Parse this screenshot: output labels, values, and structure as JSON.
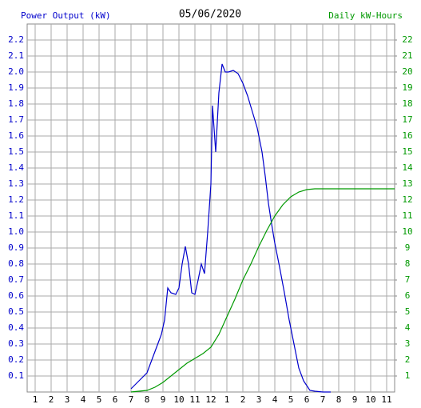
{
  "chart_data": {
    "type": "line",
    "title": "05/06/2020",
    "ylabel": "Power Output (kW)",
    "y2label": "Daily kW-Hours",
    "xlim": [
      0.5,
      23.5
    ],
    "xticks": [
      1,
      2,
      3,
      4,
      5,
      6,
      7,
      8,
      9,
      10,
      11,
      12,
      {
        "value": 13,
        "label": "1"
      },
      {
        "value": 14,
        "label": "2"
      },
      {
        "value": 15,
        "label": "3"
      },
      {
        "value": 16,
        "label": "4"
      },
      {
        "value": 17,
        "label": "5"
      },
      {
        "value": 18,
        "label": "6"
      },
      {
        "value": 19,
        "label": "7"
      },
      {
        "value": 20,
        "label": "8"
      },
      {
        "value": 21,
        "label": "9"
      },
      {
        "value": 22,
        "label": "10"
      },
      {
        "value": 23,
        "label": "11"
      }
    ],
    "ylim": [
      0,
      2.3
    ],
    "yticks": [
      0.1,
      0.2,
      0.3,
      0.4,
      0.5,
      0.6,
      0.7,
      0.8,
      0.9,
      {
        "value": 1,
        "label": "1.0"
      },
      1.1,
      1.2,
      1.3,
      1.4,
      1.5,
      1.6,
      1.7,
      1.8,
      1.9,
      {
        "value": 2,
        "label": "2.0"
      },
      2.1,
      2.2
    ],
    "y2lim": [
      0,
      23
    ],
    "y2ticks": [
      1,
      2,
      3,
      4,
      5,
      6,
      7,
      8,
      9,
      10,
      11,
      12,
      13,
      14,
      15,
      16,
      17,
      18,
      19,
      20,
      21,
      22
    ],
    "grid": true,
    "series": [
      {
        "name": "Power Output (kW)",
        "color": "#0000cc",
        "x": [
          7.0,
          7.3,
          7.6,
          8.0,
          8.3,
          8.6,
          8.9,
          9.1,
          9.3,
          9.5,
          9.8,
          10.0,
          10.2,
          10.4,
          10.6,
          10.8,
          11.0,
          11.2,
          11.4,
          11.6,
          11.8,
          12.0,
          12.1,
          12.3,
          12.5,
          12.7,
          12.9,
          13.1,
          13.4,
          13.7,
          14.0,
          14.3,
          14.6,
          14.9,
          15.2,
          15.4,
          15.6,
          15.8,
          16.0,
          16.3,
          16.6,
          16.9,
          17.2,
          17.5,
          17.8,
          18.2,
          18.5,
          19.0,
          19.5
        ],
        "values": [
          0.02,
          0.05,
          0.08,
          0.12,
          0.2,
          0.28,
          0.36,
          0.45,
          0.65,
          0.62,
          0.61,
          0.65,
          0.8,
          0.91,
          0.8,
          0.62,
          0.61,
          0.7,
          0.8,
          0.74,
          1.0,
          1.3,
          1.79,
          1.5,
          1.87,
          2.05,
          2.0,
          2.0,
          2.01,
          1.99,
          1.93,
          1.85,
          1.75,
          1.65,
          1.5,
          1.35,
          1.18,
          1.05,
          0.93,
          0.78,
          0.62,
          0.45,
          0.3,
          0.15,
          0.07,
          0.01,
          0.005,
          0,
          0
        ]
      },
      {
        "name": "Daily kW-Hours",
        "color": "#009900",
        "axis": "y2",
        "x": [
          7,
          8,
          8.5,
          9,
          9.5,
          10,
          10.5,
          11,
          11.5,
          12,
          12.5,
          13,
          13.5,
          14,
          14.5,
          15,
          15.5,
          16,
          16.5,
          17,
          17.5,
          18,
          18.5,
          19,
          23.5
        ],
        "values": [
          0,
          0.1,
          0.3,
          0.6,
          1.0,
          1.4,
          1.8,
          2.1,
          2.4,
          2.8,
          3.6,
          4.7,
          5.8,
          7.0,
          8.0,
          9.1,
          10.1,
          11.0,
          11.7,
          12.2,
          12.5,
          12.65,
          12.7,
          12.7,
          12.7
        ]
      }
    ]
  }
}
